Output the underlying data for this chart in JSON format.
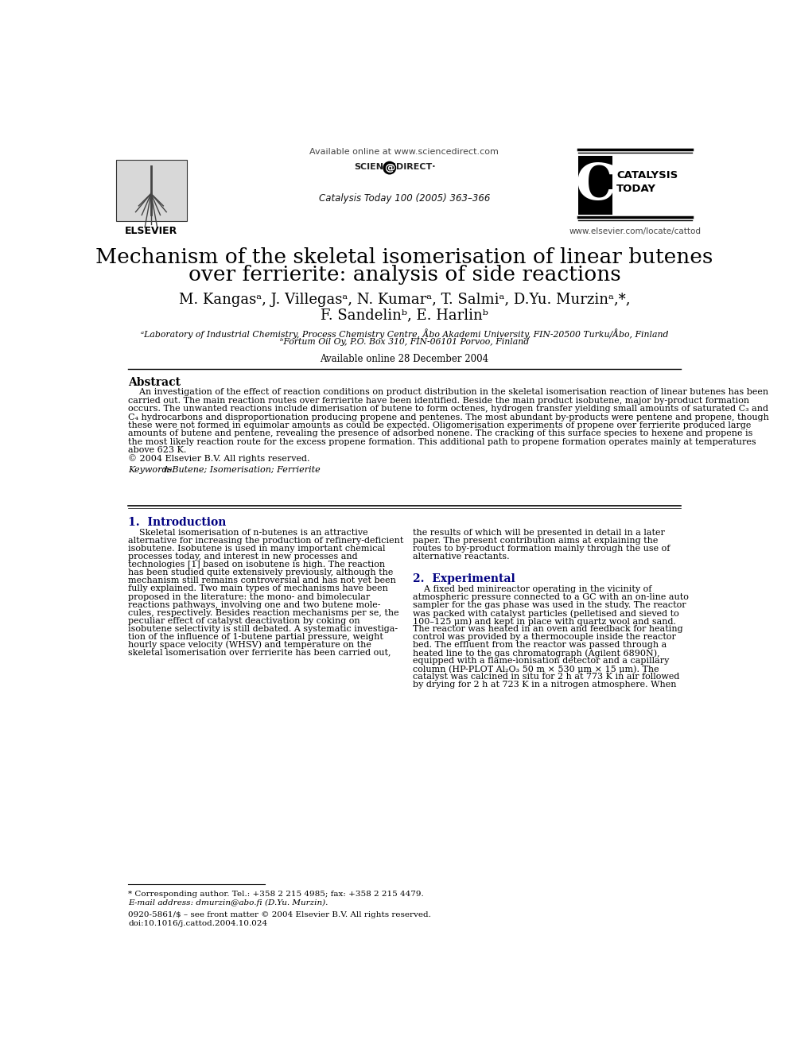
{
  "page_bg": "#ffffff",
  "header_url_text": "Available online at www.sciencedirect.com",
  "journal_info": "Catalysis Today 100 (2005) 363–366",
  "elsevier_label": "ELSEVIER",
  "catalysis_today_label1": "CATALYSIS",
  "catalysis_today_label2": "TODAY",
  "website": "www.elsevier.com/locate/cattod",
  "paper_title_line1": "Mechanism of the skeletal isomerisation of linear butenes",
  "paper_title_line2": "over ferrierite: analysis of side reactions",
  "author_line1": "M. Kangasᵃ, J. Villegasᵃ, N. Kumarᵃ, T. Salmiᵃ, D.Yu. Murzinᵃ,*,",
  "author_line2": "F. Sandelinᵇ, E. Harlinᵇ",
  "affil1": "ᵃLaboratory of Industrial Chemistry, Process Chemistry Centre, Åbo Akademi University, FIN-20500 Turku/Åbo, Finland",
  "affil2": "ᵇFortum Oil Oy, P.O. Box 310, FIN-06101 Porvoo, Finland",
  "available_online": "Available online 28 December 2004",
  "abstract_title": "Abstract",
  "abstract_indent": "    An investigation of the effect of reaction conditions on product distribution in the skeletal isomerisation reaction of linear butenes has been",
  "abstract_line2": "carried out. The main reaction routes over ferrierite have been identified. Beside the main product isobutene, major by-product formation",
  "abstract_line3": "occurs. The unwanted reactions include dimerisation of butene to form octenes, hydrogen transfer yielding small amounts of saturated C₃ and",
  "abstract_line4": "C₄ hydrocarbons and disproportionation producing propene and pentenes. The most abundant by-products were pentene and propene, though",
  "abstract_line5": "these were not formed in equimolar amounts as could be expected. Oligomerisation experiments of propene over ferrierite produced large",
  "abstract_line6": "amounts of butene and pentene, revealing the presence of adsorbed nonene. The cracking of this surface species to hexene and propene is",
  "abstract_line7": "the most likely reaction route for the excess propene formation. This additional path to propene formation operates mainly at temperatures",
  "abstract_line8": "above 623 K.",
  "copyright": "© 2004 Elsevier B.V. All rights reserved.",
  "keywords_label": "Keywords:",
  "keywords_text": " n-Butene; Isomerisation; Ferrierite",
  "section1_title": "1.  Introduction",
  "section2_title": "2.  Experimental",
  "intro_col1_lines": [
    "    Skeletal isomerisation of n-butenes is an attractive",
    "alternative for increasing the production of refinery-deficient",
    "isobutene. Isobutene is used in many important chemical",
    "processes today, and interest in new processes and",
    "technologies [1] based on isobutene is high. The reaction",
    "has been studied quite extensively previously, although the",
    "mechanism still remains controversial and has not yet been",
    "fully explained. Two main types of mechanisms have been",
    "proposed in the literature: the mono- and bimolecular",
    "reactions pathways, involving one and two butene mole-",
    "cules, respectively. Besides reaction mechanisms per se, the",
    "peculiar effect of catalyst deactivation by coking on",
    "isobutene selectivity is still debated. A systematic investiga-",
    "tion of the influence of 1-butene partial pressure, weight",
    "hourly space velocity (WHSV) and temperature on the",
    "skeletal isomerisation over ferrierite has been carried out,"
  ],
  "intro_col2_lines": [
    "the results of which will be presented in detail in a later",
    "paper. The present contribution aims at explaining the",
    "routes to by-product formation mainly through the use of",
    "alternative reactants."
  ],
  "exp_col2_lines": [
    "    A fixed bed minireactor operating in the vicinity of",
    "atmospheric pressure connected to a GC with an on-line auto",
    "sampler for the gas phase was used in the study. The reactor",
    "was packed with catalyst particles (pelletised and sieved to",
    "100–125 μm) and kept in place with quartz wool and sand.",
    "The reactor was heated in an oven and feedback for heating",
    "control was provided by a thermocouple inside the reactor",
    "bed. The effluent from the reactor was passed through a",
    "heated line to the gas chromatograph (Agilent 6890N),",
    "equipped with a flame-ionisation detector and a capillary",
    "column (HP-PLOT Al₂O₃ 50 m × 530 μm × 15 μm). The",
    "catalyst was calcined in situ for 2 h at 773 K in air followed",
    "by drying for 2 h at 723 K in a nitrogen atmosphere. When"
  ],
  "footnote_star": "* Corresponding author. Tel.: +358 2 215 4985; fax: +358 2 215 4479.",
  "footnote_email": "E-mail address: dmurzin@abo.fi (D.Yu. Murzin).",
  "footnote_issn": "0920-5861/$ – see front matter © 2004 Elsevier B.V. All rights reserved.",
  "footnote_doi": "doi:10.1016/j.cattod.2004.10.024",
  "title_color": "#000000",
  "body_color": "#000000",
  "section_title_color": "#000080",
  "link_color": "#0000cc"
}
